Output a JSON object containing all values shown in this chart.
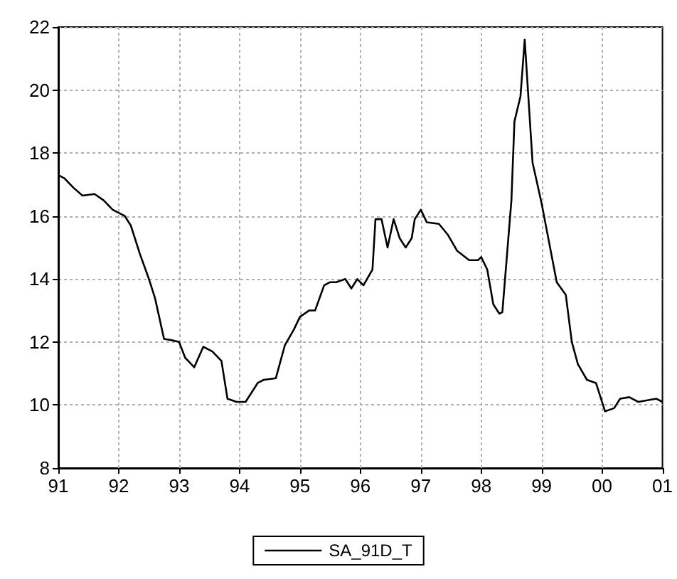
{
  "chart_data": {
    "type": "line",
    "xlim": [
      1991,
      2001
    ],
    "xticks": [
      {
        "value": 1991,
        "label": "91"
      },
      {
        "value": 1992,
        "label": "92"
      },
      {
        "value": 1993,
        "label": "93"
      },
      {
        "value": 1994,
        "label": "94"
      },
      {
        "value": 1995,
        "label": "95"
      },
      {
        "value": 1996,
        "label": "96"
      },
      {
        "value": 1997,
        "label": "97"
      },
      {
        "value": 1998,
        "label": "98"
      },
      {
        "value": 1999,
        "label": "99"
      },
      {
        "value": 2000,
        "label": "00"
      },
      {
        "value": 2001,
        "label": "01"
      }
    ],
    "ylim": [
      8,
      22
    ],
    "yticks": [
      8,
      10,
      12,
      14,
      16,
      18,
      20,
      22
    ],
    "grid": true,
    "legend": "bottom",
    "marker": "none",
    "line_style": "solid",
    "series": [
      {
        "name": "SA_91D_T",
        "color": "#000000",
        "x": [
          1991.0,
          1991.1,
          1991.25,
          1991.4,
          1991.6,
          1991.75,
          1991.9,
          1992.1,
          1992.2,
          1992.35,
          1992.5,
          1992.6,
          1992.75,
          1992.9,
          1993.0,
          1993.1,
          1993.25,
          1993.4,
          1993.55,
          1993.7,
          1993.8,
          1993.95,
          1994.1,
          1994.3,
          1994.4,
          1994.6,
          1994.75,
          1994.9,
          1995.0,
          1995.15,
          1995.25,
          1995.4,
          1995.5,
          1995.6,
          1995.75,
          1995.85,
          1995.95,
          1996.05,
          1996.2,
          1996.25,
          1996.35,
          1996.45,
          1996.55,
          1996.65,
          1996.75,
          1996.85,
          1996.9,
          1997.0,
          1997.1,
          1997.3,
          1997.45,
          1997.6,
          1997.8,
          1997.95,
          1998.0,
          1998.1,
          1998.2,
          1998.3,
          1998.35,
          1998.5,
          1998.55,
          1998.65,
          1998.72,
          1998.85,
          1999.0,
          1999.25,
          1999.4,
          1999.5,
          1999.6,
          1999.75,
          1999.9,
          2000.05,
          2000.2,
          2000.3,
          2000.45,
          2000.6,
          2000.9,
          2001.0
        ],
        "values": [
          17.3,
          17.2,
          16.9,
          16.65,
          16.7,
          16.5,
          16.2,
          16.0,
          15.7,
          14.8,
          14.0,
          13.4,
          12.1,
          12.05,
          12.0,
          11.5,
          11.2,
          11.85,
          11.7,
          11.4,
          10.2,
          10.1,
          10.1,
          10.7,
          10.8,
          10.85,
          11.9,
          12.4,
          12.8,
          13.0,
          13.0,
          13.8,
          13.9,
          13.9,
          14.0,
          13.7,
          14.0,
          13.8,
          14.3,
          15.9,
          15.9,
          15.0,
          15.9,
          15.3,
          15.0,
          15.3,
          15.9,
          16.2,
          15.8,
          15.75,
          15.4,
          14.9,
          14.6,
          14.6,
          14.7,
          14.3,
          13.2,
          12.9,
          12.95,
          16.5,
          19.0,
          19.8,
          21.6,
          17.7,
          16.4,
          13.9,
          13.5,
          12.0,
          11.3,
          10.8,
          10.7,
          9.8,
          9.9,
          10.2,
          10.25,
          10.1,
          10.2,
          10.1
        ]
      }
    ]
  }
}
